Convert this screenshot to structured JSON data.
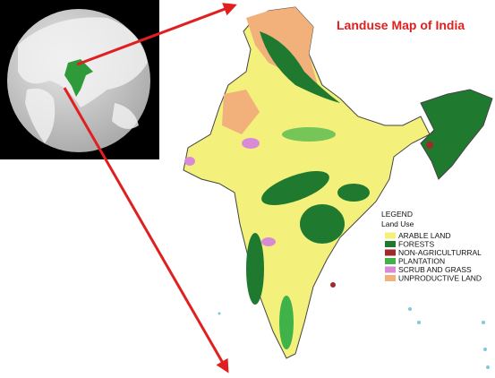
{
  "title": "Landuse Map of India",
  "legend": {
    "heading": "LEGEND",
    "subheading": "Land Use",
    "items": [
      {
        "label": "ARABLE LAND",
        "color": "#f3f07c"
      },
      {
        "label": "FORESTS",
        "color": "#1f7a30"
      },
      {
        "label": "NON-AGRICULTURRAL",
        "color": "#a3282a"
      },
      {
        "label": "PLANTATION",
        "color": "#3fb24a"
      },
      {
        "label": "SCRUB AND GRASS",
        "color": "#d98ad6"
      },
      {
        "label": "UNPRODUCTIVE LAND",
        "color": "#f2b07a"
      }
    ]
  }
}
